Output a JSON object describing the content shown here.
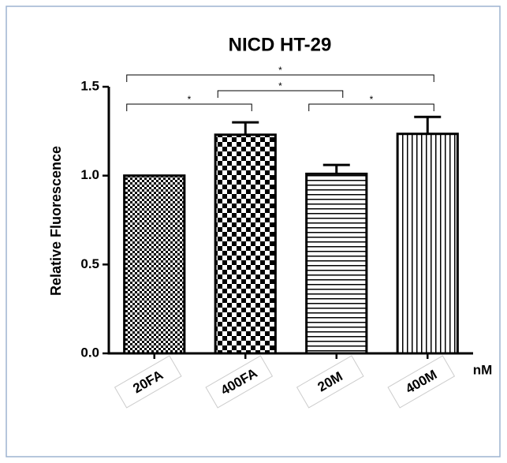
{
  "chart_data": {
    "type": "bar",
    "title": "NICD HT-29",
    "y_label": "Relative Fluorescence",
    "x_unit": "nM",
    "categories": [
      "20FA",
      "400FA",
      "20M",
      "400M"
    ],
    "values": [
      1.0,
      1.23,
      1.01,
      1.235
    ],
    "errors": [
      null,
      0.07,
      0.05,
      0.095
    ],
    "color": "#000000",
    "ylim": [
      0,
      1.5
    ],
    "yticks": [
      {
        "value": 0,
        "label": "0.0"
      },
      0.5,
      {
        "value": 1,
        "label": "1.0"
      },
      1.5
    ],
    "comparisons": [
      {
        "from": 0,
        "to": 1,
        "label": "*"
      },
      {
        "from": 2,
        "to": 3,
        "label": "*"
      },
      {
        "from": 1,
        "to": 2,
        "label": "*"
      },
      {
        "from": 0,
        "to": 3,
        "label": "*"
      }
    ]
  }
}
